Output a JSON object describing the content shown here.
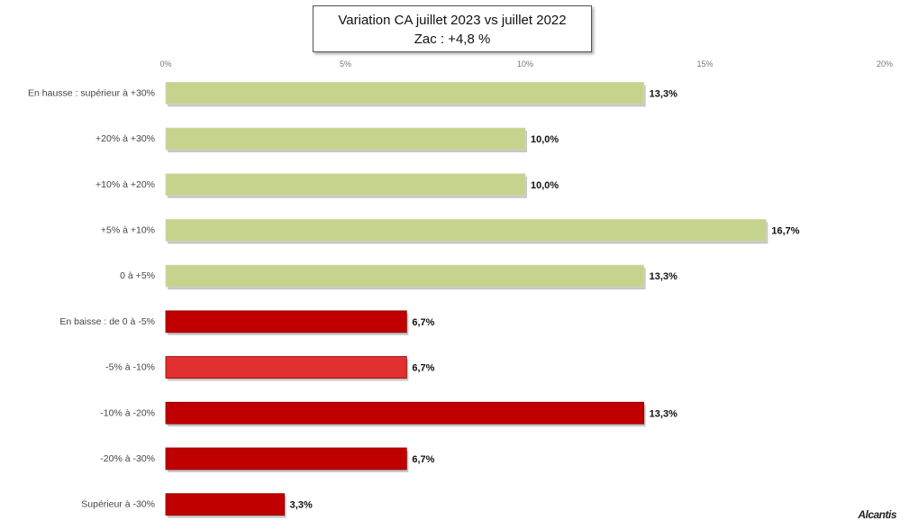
{
  "chart_data": {
    "type": "bar",
    "orientation": "horizontal",
    "title": "Variation CA juillet 2023 vs juillet 2022",
    "subtitle": "Zac : +4,8 %",
    "categories": [
      "En hausse : supérieur à +30%",
      "+20% à +30%",
      "+10% à +20%",
      "+5% à +10%",
      "0 à +5%",
      "En baisse : de 0 à -5%",
      "-5% à -10%",
      "-10% à -20%",
      "-20% à -30%",
      "Supérieur à -30%"
    ],
    "values": [
      13.3,
      10.0,
      10.0,
      16.7,
      13.3,
      6.7,
      6.7,
      13.3,
      6.7,
      3.3
    ],
    "value_labels": [
      "13,3%",
      "10,0%",
      "10,0%",
      "16,7%",
      "13,3%",
      "6,7%",
      "6,7%",
      "13,3%",
      "6,7%",
      "3,3%"
    ],
    "bar_colors": [
      "#c5d38c",
      "#c5d38c",
      "#c5d38c",
      "#c5d38c",
      "#c5d38c",
      "#c00000",
      "#e03030",
      "#c00000",
      "#c00000",
      "#c00000"
    ],
    "xlim": [
      0,
      20
    ],
    "x_ticks": [
      0,
      5,
      10,
      15,
      20
    ],
    "x_tick_labels": [
      "0%",
      "5%",
      "10%",
      "15%",
      "20%"
    ],
    "xlabel": "",
    "ylabel": "",
    "grid": false,
    "legend": "none"
  },
  "watermark": "Alcantis"
}
